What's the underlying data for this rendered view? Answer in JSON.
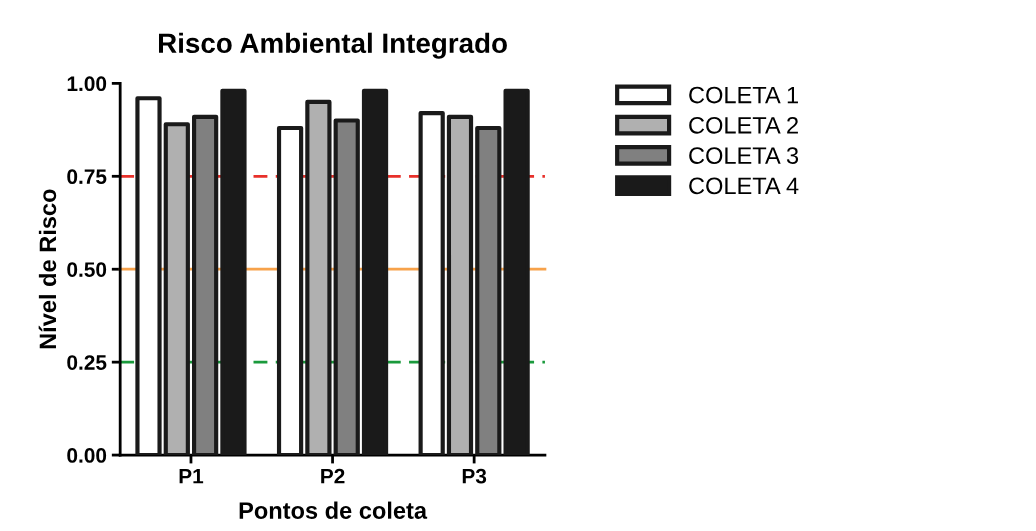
{
  "chart_data": {
    "type": "bar",
    "title": "Risco Ambiental Integrado",
    "xlabel": "Pontos de coleta",
    "ylabel": "Nível de Risco",
    "categories": [
      "P1",
      "P2",
      "P3"
    ],
    "series": [
      {
        "name": "COLETA 1",
        "color": "#ffffff",
        "values": [
          0.96,
          0.88,
          0.92
        ]
      },
      {
        "name": "COLETA 2",
        "color": "#b0b0b0",
        "values": [
          0.89,
          0.95,
          0.91
        ]
      },
      {
        "name": "COLETA 3",
        "color": "#808080",
        "values": [
          0.91,
          0.9,
          0.88
        ]
      },
      {
        "name": "COLETA 4",
        "color": "#1a1a1a",
        "values": [
          0.98,
          0.98,
          0.98
        ]
      }
    ],
    "ylim": [
      0,
      1
    ],
    "yticks": [
      {
        "value": 0,
        "label": "0.00"
      },
      {
        "value": 0.25,
        "label": "0.25"
      },
      {
        "value": 0.5,
        "label": "0.50"
      },
      {
        "value": 0.75,
        "label": "0.75"
      },
      {
        "value": 1,
        "label": "1.00"
      }
    ],
    "ref_lines": [
      {
        "axis": "y",
        "value": 0.75,
        "color": "#e8302a",
        "line_style": "dashed"
      },
      {
        "axis": "y",
        "value": 0.5,
        "color": "#f7a24b",
        "line_style": "solid"
      },
      {
        "axis": "y",
        "value": 0.25,
        "color": "#1a9a3c",
        "line_style": "dashed"
      }
    ],
    "legend": "right",
    "grid": false
  }
}
